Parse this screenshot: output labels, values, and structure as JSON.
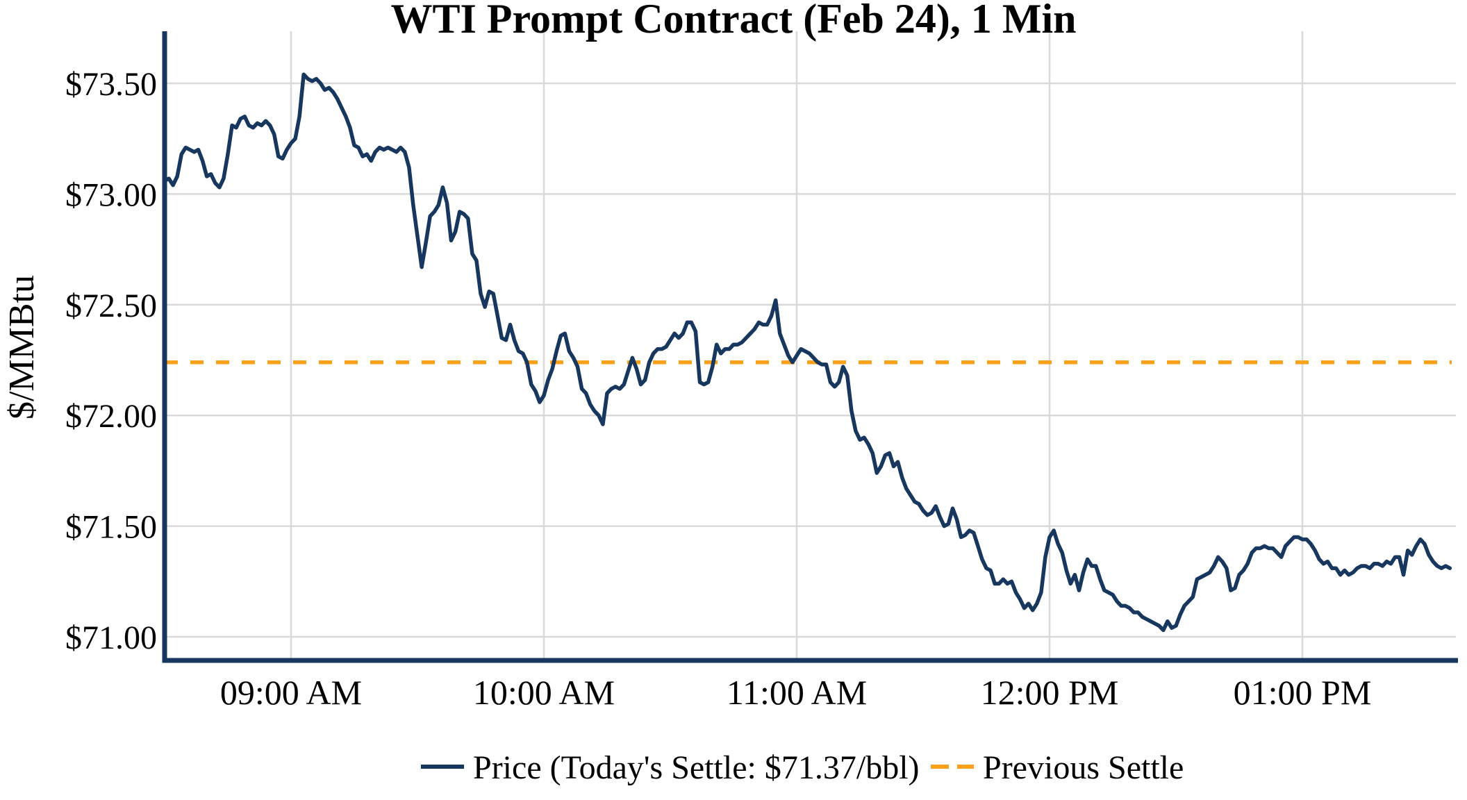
{
  "title": "WTI Prompt Contract (Feb 24), 1 Min",
  "colors": {
    "price_line": "#17375E",
    "settle_line": "#F9A11B",
    "grid": "#D9D9D9",
    "axis": "#17375E",
    "text": "#000000",
    "background": "#FFFFFF"
  },
  "chart_data": {
    "type": "line",
    "title": "WTI Prompt Contract (Feb 24), 1 Min",
    "xlabel": "",
    "ylabel": "$/MMBtu",
    "grid": true,
    "legend_position": "bottom-center",
    "ylim": [
      70.89,
      73.74
    ],
    "y_axis_ticks": [
      {
        "label": "$73.50",
        "value": 73.5
      },
      {
        "label": "$73.00",
        "value": 73.0
      },
      {
        "label": "$72.50",
        "value": 72.5
      },
      {
        "label": "$72.00",
        "value": 72.0
      },
      {
        "label": "$71.50",
        "value": 71.5
      },
      {
        "label": "$71.00",
        "value": 71.0
      }
    ],
    "x_axis_ticks": [
      {
        "label": "09:00 AM",
        "minute": 30
      },
      {
        "label": "10:00 AM",
        "minute": 90
      },
      {
        "label": "11:00 AM",
        "minute": 150
      },
      {
        "label": "12:00 PM",
        "minute": 210
      },
      {
        "label": "01:00 PM",
        "minute": 270
      }
    ],
    "legend": {
      "entries": [
        "Price (Today's Settle: $71.37/bbl)",
        "Previous Settle"
      ]
    },
    "previous_settle": 72.24,
    "todays_settle": 71.37,
    "series": [
      {
        "name": "Price",
        "start_time": "08:30 AM",
        "interval_minutes": 1,
        "values": [
          73.06,
          73.07,
          73.04,
          73.08,
          73.18,
          73.21,
          73.2,
          73.19,
          73.2,
          73.15,
          73.08,
          73.09,
          73.05,
          73.03,
          73.07,
          73.18,
          73.31,
          73.3,
          73.34,
          73.35,
          73.31,
          73.3,
          73.32,
          73.31,
          73.33,
          73.31,
          73.27,
          73.17,
          73.16,
          73.2,
          73.23,
          73.25,
          73.35,
          73.54,
          73.52,
          73.51,
          73.52,
          73.5,
          73.47,
          73.48,
          73.46,
          73.43,
          73.39,
          73.35,
          73.3,
          73.22,
          73.21,
          73.17,
          73.18,
          73.15,
          73.19,
          73.21,
          73.2,
          73.21,
          73.2,
          73.19,
          73.21,
          73.19,
          73.12,
          72.95,
          72.81,
          72.67,
          72.78,
          72.9,
          72.92,
          72.95,
          73.03,
          72.96,
          72.79,
          72.83,
          72.92,
          72.91,
          72.89,
          72.73,
          72.7,
          72.55,
          72.49,
          72.56,
          72.55,
          72.45,
          72.35,
          72.34,
          72.41,
          72.34,
          72.29,
          72.28,
          72.24,
          72.14,
          72.11,
          72.06,
          72.09,
          72.16,
          72.21,
          72.29,
          72.36,
          72.37,
          72.29,
          72.26,
          72.22,
          72.12,
          72.1,
          72.05,
          72.02,
          72.0,
          71.96,
          72.1,
          72.12,
          72.13,
          72.12,
          72.14,
          72.2,
          72.26,
          72.21,
          72.14,
          72.16,
          72.24,
          72.28,
          72.3,
          72.3,
          72.31,
          72.34,
          72.37,
          72.35,
          72.37,
          72.42,
          72.42,
          72.38,
          72.15,
          72.14,
          72.15,
          72.22,
          72.32,
          72.28,
          72.3,
          72.3,
          72.32,
          72.32,
          72.33,
          72.35,
          72.37,
          72.39,
          72.42,
          72.41,
          72.41,
          72.45,
          72.52,
          72.37,
          72.32,
          72.27,
          72.24,
          72.27,
          72.3,
          72.29,
          72.28,
          72.26,
          72.24,
          72.23,
          72.23,
          72.15,
          72.13,
          72.15,
          72.22,
          72.18,
          72.02,
          71.93,
          71.89,
          71.9,
          71.87,
          71.83,
          71.74,
          71.77,
          71.82,
          71.83,
          71.77,
          71.79,
          71.72,
          71.67,
          71.64,
          71.61,
          71.6,
          71.57,
          71.55,
          71.56,
          71.59,
          71.54,
          71.5,
          71.51,
          71.58,
          71.53,
          71.45,
          71.46,
          71.48,
          71.47,
          71.41,
          71.35,
          71.31,
          71.3,
          71.24,
          71.24,
          71.26,
          71.24,
          71.25,
          71.2,
          71.17,
          71.13,
          71.15,
          71.12,
          71.15,
          71.2,
          71.36,
          71.45,
          71.48,
          71.42,
          71.38,
          71.3,
          71.24,
          71.28,
          71.21,
          71.29,
          71.35,
          71.32,
          71.32,
          71.26,
          71.21,
          71.2,
          71.19,
          71.16,
          71.14,
          71.14,
          71.13,
          71.11,
          71.11,
          71.09,
          71.08,
          71.07,
          71.06,
          71.05,
          71.03,
          71.07,
          71.04,
          71.05,
          71.1,
          71.14,
          71.16,
          71.18,
          71.26,
          71.27,
          71.28,
          71.29,
          71.32,
          71.36,
          71.34,
          71.31,
          71.21,
          71.22,
          71.28,
          71.3,
          71.33,
          71.38,
          71.4,
          71.4,
          71.41,
          71.4,
          71.4,
          71.38,
          71.36,
          71.41,
          71.43,
          71.45,
          71.45,
          71.44,
          71.44,
          71.42,
          71.39,
          71.35,
          71.33,
          71.34,
          71.31,
          71.31,
          71.28,
          71.3,
          71.28,
          71.29,
          71.31,
          71.32,
          71.32,
          71.31,
          71.33,
          71.33,
          71.32,
          71.34,
          71.33,
          71.36,
          71.36,
          71.28,
          71.39,
          71.37,
          71.41,
          71.44,
          71.42,
          71.37,
          71.34,
          71.32,
          71.31,
          71.32,
          71.31
        ]
      }
    ]
  }
}
